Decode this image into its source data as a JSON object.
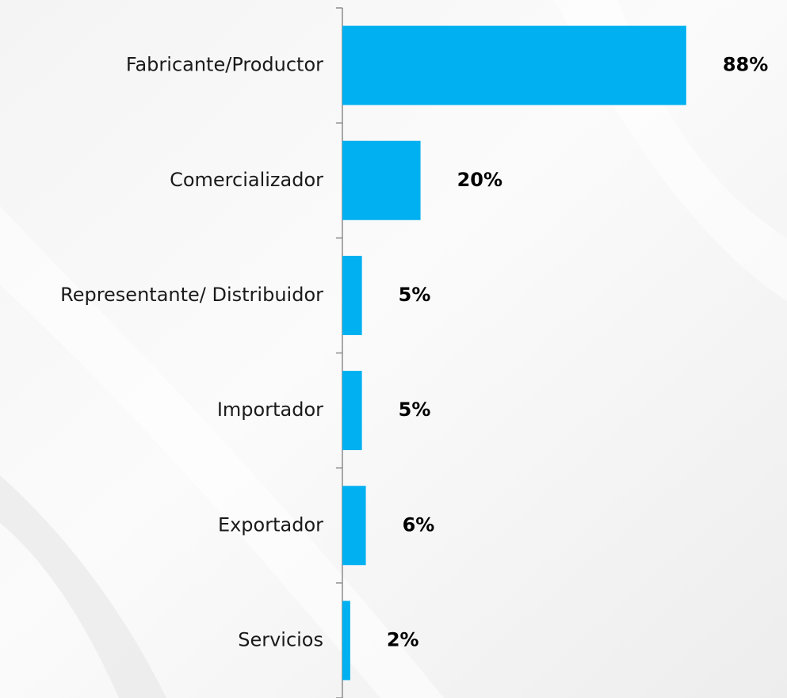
{
  "chart_data": {
    "type": "bar",
    "orientation": "horizontal",
    "categories": [
      "Fabricante/Productor",
      "Comercializador",
      "Representante/ Distribuidor",
      "Importador",
      "Exportador",
      "Servicios"
    ],
    "values": [
      88,
      20,
      5,
      5,
      6,
      2
    ],
    "value_labels": [
      "88%",
      "20%",
      "5%",
      "5%",
      "6%",
      "2%"
    ],
    "color": "#00b0f0",
    "xlim": [
      0,
      100
    ]
  }
}
